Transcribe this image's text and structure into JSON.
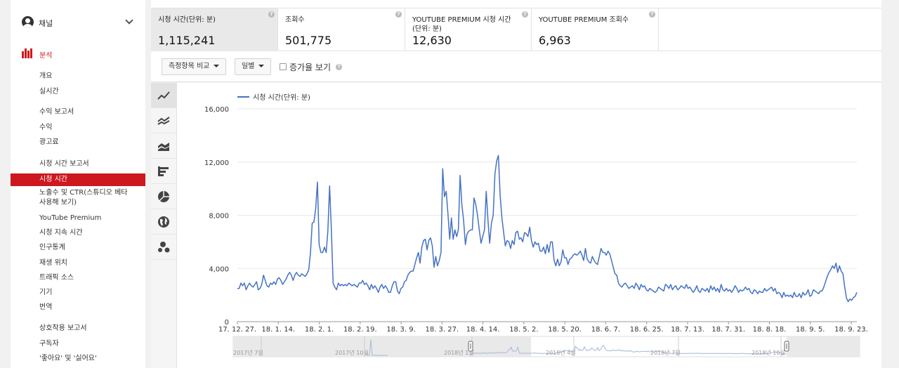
{
  "sidebar": {
    "channel_label": "채널",
    "analytics_label": "분석",
    "items": [
      {
        "label": "개요",
        "active": false
      },
      {
        "label": "실시간",
        "active": false
      },
      {
        "label": "수익 보고서",
        "active": false
      },
      {
        "label": "수익",
        "active": false
      },
      {
        "label": "광고료",
        "active": false
      },
      {
        "label": "시청 시간 보고서",
        "active": false
      },
      {
        "label": "시청 시간",
        "active": true
      },
      {
        "label": "노출수 및 CTR(스튜디오 베타 사용해 보기)",
        "active": false
      },
      {
        "label": "YouTube Premium",
        "active": false
      },
      {
        "label": "시청 지속 시간",
        "active": false
      },
      {
        "label": "인구통계",
        "active": false
      },
      {
        "label": "재생 위치",
        "active": false
      },
      {
        "label": "트래픽 소스",
        "active": false
      },
      {
        "label": "기기",
        "active": false
      },
      {
        "label": "번역",
        "active": false
      },
      {
        "label": "상호작용 보고서",
        "active": false
      },
      {
        "label": "구독자",
        "active": false
      },
      {
        "label": "'좋아요' 및 '싫어요'",
        "active": false
      }
    ]
  },
  "metrics": [
    {
      "label": "시청 시간(단위: 분)",
      "value": "1,115,241",
      "selected": true
    },
    {
      "label": "조회수",
      "value": "501,775",
      "selected": false
    },
    {
      "label": "YOUTUBE PREMIUM 시청 시간(단위: 분)",
      "value": "12,630",
      "selected": false
    },
    {
      "label": "YOUTUBE PREMIUM 조회수",
      "value": "6,963",
      "selected": false
    }
  ],
  "help_glyph": "?",
  "controls": {
    "compare_label": "측정항목 비교",
    "period_label": "일별",
    "growth_label": "증가율 보기",
    "growth_checked": false
  },
  "chart_tools": [
    "line-chart-icon",
    "multi-line-icon",
    "stacked-area-icon",
    "bar-chart-icon",
    "pie-chart-icon",
    "globe-icon",
    "bubble-chart-icon"
  ],
  "colors": {
    "accent": "#cc181e",
    "line": "#4472c4",
    "nav_line": "#a6b8d8"
  },
  "chart_data": {
    "type": "line",
    "title": "",
    "xlabel": "",
    "ylabel": "",
    "series": [
      {
        "name": "시청 시간(단위: 분)",
        "values": [
          2500,
          2500,
          2900,
          2700,
          2900,
          2400,
          2700,
          2900,
          2700,
          2600,
          2800,
          3000,
          2400,
          2500,
          2800,
          3500,
          3100,
          2700,
          2600,
          2900,
          2800,
          3000,
          2800,
          3200,
          3300,
          3100,
          2800,
          3000,
          3200,
          3500,
          3700,
          3500,
          3100,
          3500,
          3700,
          3500,
          3400,
          3600,
          3500,
          3400,
          3600,
          3900,
          5200,
          7400,
          7500,
          8500,
          10500,
          5800,
          5200,
          5200,
          5600,
          5200,
          6800,
          10200,
          6900,
          2900,
          2600,
          2400,
          2900,
          2700,
          2800,
          2700,
          2800,
          2700,
          2900,
          2800,
          2700,
          2800,
          2700,
          2600,
          2900,
          2900,
          3100,
          2800,
          2900,
          2700,
          2400,
          2800,
          2500,
          2700,
          2500,
          2200,
          2600,
          2800,
          2500,
          2700,
          2500,
          2200,
          2200,
          2700,
          3000,
          3000,
          2300,
          2100,
          2500,
          2600,
          3000,
          3100,
          3500,
          3700,
          3800,
          3800,
          4300,
          4800,
          5200,
          4400,
          5600,
          6100,
          6200,
          5400,
          6100,
          6300,
          5700,
          4100,
          4900,
          4200,
          4600,
          5200,
          11500,
          9400,
          9800,
          8100,
          6200,
          7800,
          6200,
          6900,
          6400,
          6900,
          11000,
          8800,
          7600,
          5800,
          6600,
          6800,
          6900,
          6900,
          9300,
          8800,
          8000,
          6900,
          5900,
          6400,
          6900,
          9800,
          7600,
          5900,
          7400,
          8000,
          11100,
          12100,
          12500,
          9500,
          7800,
          6700,
          5700,
          6100,
          6000,
          5500,
          6100,
          5800,
          6700,
          6800,
          6200,
          6300,
          6000,
          6700,
          6600,
          6400,
          7100,
          6100,
          5600,
          6000,
          5800,
          5900,
          5300,
          5300,
          5600,
          5100,
          5800,
          5200,
          6000,
          6000,
          4600,
          4200,
          4700,
          4200,
          4500,
          5400,
          4800,
          4800,
          4300,
          4700,
          4800,
          5000,
          5100,
          5000,
          5100,
          5300,
          5000,
          4600,
          5500,
          4700,
          4500,
          4400,
          4900,
          4600,
          4400,
          4300,
          4900,
          5500,
          5200,
          5200,
          5000,
          5300,
          5100,
          4600,
          4100,
          3600,
          3500,
          2900,
          2700,
          2600,
          2800,
          2900,
          2700,
          2500,
          2600,
          2700,
          2500,
          2900,
          2700,
          2400,
          2800,
          2600,
          2700,
          2400,
          2300,
          2500,
          2400,
          2300,
          2200,
          2300,
          2600,
          2500,
          2400,
          2300,
          2800,
          2700,
          2500,
          2800,
          2400,
          2600,
          2700,
          2400,
          2500,
          2700,
          2600,
          2500,
          2800,
          2500,
          2600,
          2400,
          2200,
          2400,
          2700,
          2300,
          2200,
          2500,
          2400,
          2300,
          2500,
          2200,
          2700,
          2400,
          2600,
          2300,
          2500,
          2200,
          2800,
          2400,
          2300,
          2500,
          2300,
          2400,
          2200,
          2400,
          2700,
          2500,
          2200,
          2400,
          2300,
          2400,
          2600,
          2400,
          2500,
          2200,
          2100,
          2400,
          2300,
          2100,
          2300,
          2200,
          2200,
          2500,
          2300,
          2400,
          2500,
          2600,
          2300,
          2500,
          2100,
          2200,
          2100,
          1800,
          2200,
          1900,
          2000,
          1900,
          2000,
          1800,
          2200,
          1900,
          1900,
          2100,
          1800,
          2200,
          2000,
          2100,
          2400,
          1900,
          2000,
          2400,
          2300,
          2200,
          2100,
          2300,
          2300,
          2600,
          3000,
          3400,
          3700,
          3900,
          4200,
          4000,
          4400,
          3700,
          4200,
          3800,
          3600,
          2600,
          1800,
          1500,
          1700,
          1600,
          1800,
          1900,
          2200
        ]
      }
    ],
    "x_ticks": [
      "17. 12. 27.",
      "18. 1. 14.",
      "18. 2. 1.",
      "18. 2. 19.",
      "18. 3. 9.",
      "18. 3. 27.",
      "18. 4. 14.",
      "18. 5. 2.",
      "18. 5. 20.",
      "18. 6. 7.",
      "18. 6. 25.",
      "18. 7. 13.",
      "18. 7. 31.",
      "18. 8. 18.",
      "18. 9. 5.",
      "18. 9. 23."
    ],
    "y_ticks": [
      "0",
      "4,000",
      "8,000",
      "12,000",
      "16,000"
    ],
    "ylim": [
      0,
      16000
    ],
    "legend": "top-left",
    "grid": true,
    "navigator_labels": [
      "2017년 7월",
      "2017년 10월",
      "2018년 1월",
      "2018년 4월",
      "2018년 7월",
      "2018년 10월"
    ]
  }
}
